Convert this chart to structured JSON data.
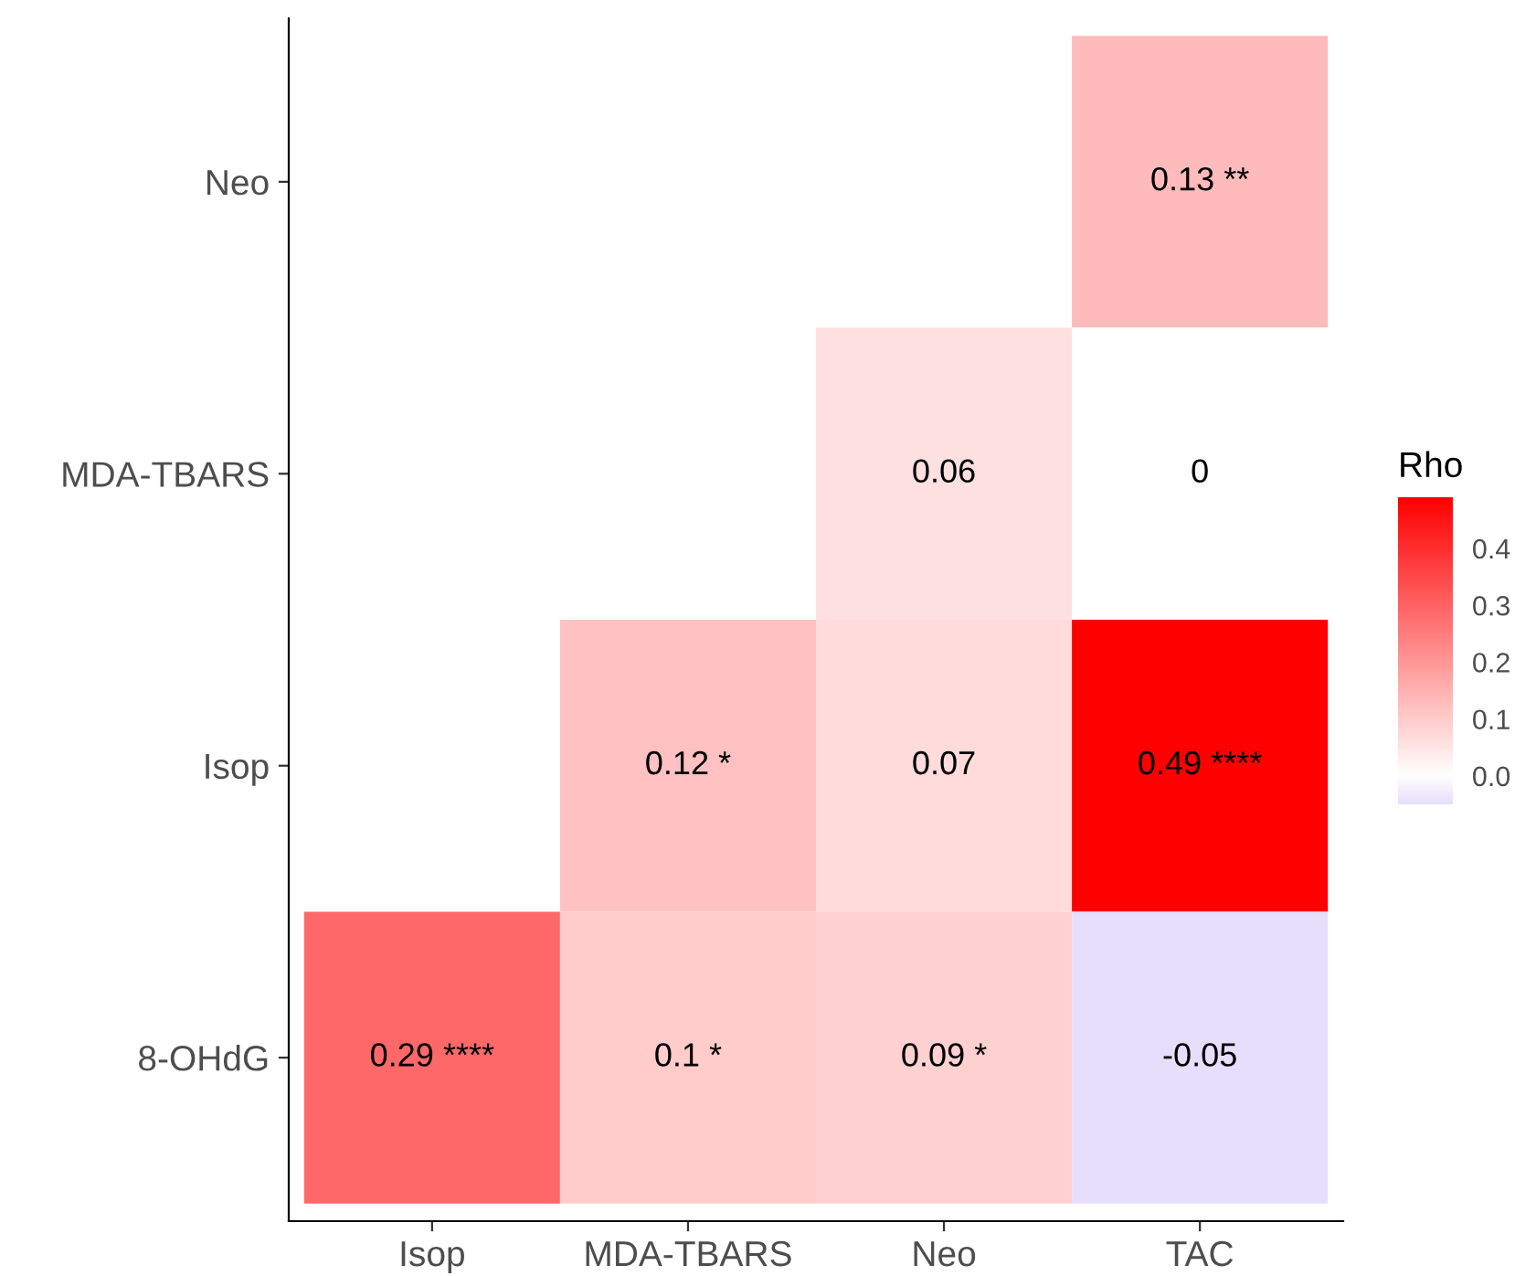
{
  "chart_data": {
    "type": "heatmap",
    "categories": [
      "Isop",
      "MDA-TBARS",
      "Neo",
      "TAC"
    ],
    "y_categories": [
      "Neo",
      "MDA-TBARS",
      "Isop",
      "8-OHdG"
    ],
    "cells": [
      [
        null,
        null,
        null,
        0.13
      ],
      [
        null,
        null,
        0.06,
        0
      ],
      [
        null,
        0.12,
        0.07,
        0.49
      ],
      [
        0.29,
        0.1,
        0.09,
        -0.05
      ]
    ],
    "cell_labels": [
      [
        null,
        null,
        null,
        "0.13 **"
      ],
      [
        null,
        null,
        "0.06",
        "0"
      ],
      [
        null,
        "0.12 *",
        "0.07",
        "0.49 ****"
      ],
      [
        "0.29 ****",
        "0.1 *",
        "0.09 *",
        "-0.05"
      ]
    ],
    "clabel": "Rho",
    "clim": [
      -0.05,
      0.49
    ],
    "cticks": [
      {
        "value": 0,
        "label": "0.0"
      },
      {
        "value": 0.1,
        "label": "0.1"
      },
      {
        "value": 0.2,
        "label": "0.2"
      },
      {
        "value": 0.3,
        "label": "0.3"
      },
      {
        "value": 0.4,
        "label": "0.4"
      }
    ]
  }
}
